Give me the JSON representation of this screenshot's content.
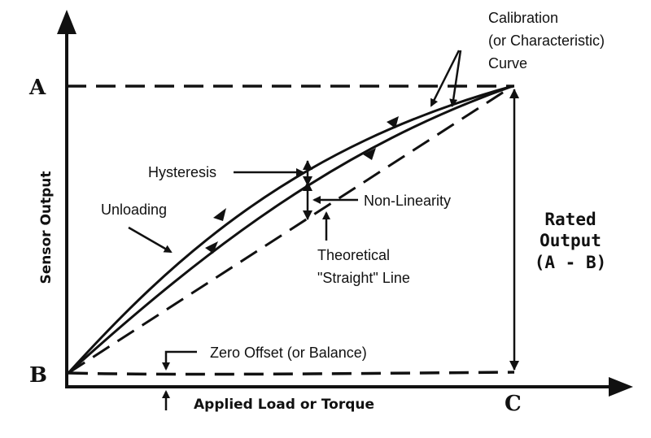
{
  "points": {
    "a": "A",
    "b": "B",
    "c": "C"
  },
  "axes": {
    "x_label": "Applied Load or Torque",
    "y_label": "Sensor Output"
  },
  "labels": {
    "calibration_line1": "Calibration",
    "calibration_line2": "(or Characteristic)",
    "calibration_line3": "Curve",
    "hysteresis": "Hysteresis",
    "non_linearity": "Non-Linearity",
    "unloading": "Unloading",
    "theoretical_line1": "Theoretical",
    "theoretical_line2": "\"Straight\" Line",
    "zero_offset": "Zero Offset (or Balance)",
    "rated_line1": "Rated",
    "rated_line2": "Output",
    "rated_line3": "(A - B)"
  },
  "colors": {
    "ink": "#111111",
    "background": "#ffffff"
  }
}
